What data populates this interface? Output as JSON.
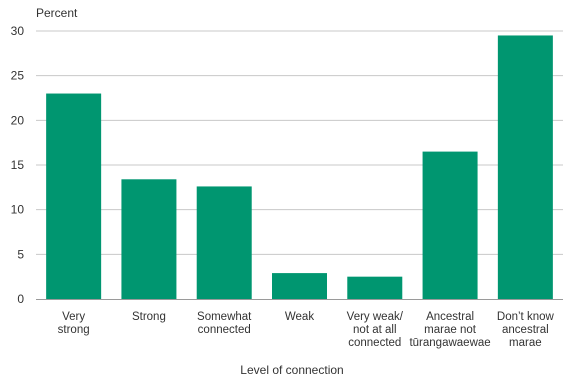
{
  "chart_data": {
    "type": "bar",
    "title": "",
    "ylabel": "Percent",
    "xlabel": "Level of connection",
    "ylim": [
      0,
      30
    ],
    "yticks": [
      0,
      5,
      10,
      15,
      20,
      25,
      30
    ],
    "grid": true,
    "bar_color": "#009670",
    "categories": [
      [
        "Very",
        "strong"
      ],
      [
        "Strong"
      ],
      [
        "Somewhat",
        "connected"
      ],
      [
        "Weak"
      ],
      [
        "Very weak/",
        "not at all",
        "connected"
      ],
      [
        "Ancestral",
        "marae not",
        "tūrangawaewae"
      ],
      [
        "Don’t know",
        "ancestral",
        "marae"
      ]
    ],
    "values": [
      23.0,
      13.4,
      12.6,
      2.9,
      2.5,
      16.5,
      29.5
    ]
  }
}
